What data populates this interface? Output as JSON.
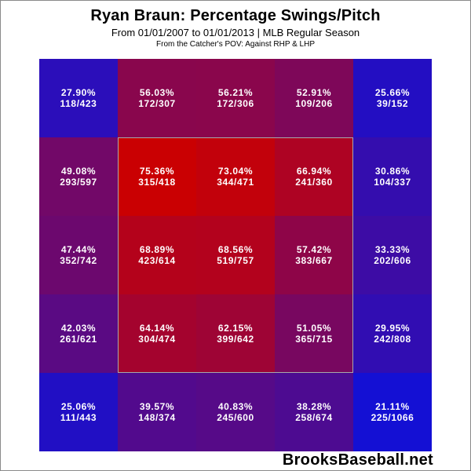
{
  "title": "Ryan Braun: Percentage Swings/Pitch",
  "subtitle": "From 01/01/2007 to 01/01/2013 | MLB Regular Season",
  "perspective": "From the Catcher's POV:   Against RHP & LHP",
  "brand": "BrooksBaseball.net",
  "colors": {
    "low": "#1010d8",
    "high": "#cc0000",
    "zone_border": "#a8a8a8"
  },
  "chart_data": {
    "type": "heatmap",
    "rows": 5,
    "cols": 5,
    "strike_zone": {
      "rows": [
        1,
        3
      ],
      "cols": [
        1,
        3
      ]
    },
    "cells": [
      [
        {
          "pct": "27.90%",
          "frac": "118/423",
          "value": 27.9
        },
        {
          "pct": "56.03%",
          "frac": "172/307",
          "value": 56.03
        },
        {
          "pct": "56.21%",
          "frac": "172/306",
          "value": 56.21
        },
        {
          "pct": "52.91%",
          "frac": "109/206",
          "value": 52.91
        },
        {
          "pct": "25.66%",
          "frac": "39/152",
          "value": 25.66
        }
      ],
      [
        {
          "pct": "49.08%",
          "frac": "293/597",
          "value": 49.08
        },
        {
          "pct": "75.36%",
          "frac": "315/418",
          "value": 75.36
        },
        {
          "pct": "73.04%",
          "frac": "344/471",
          "value": 73.04
        },
        {
          "pct": "66.94%",
          "frac": "241/360",
          "value": 66.94
        },
        {
          "pct": "30.86%",
          "frac": "104/337",
          "value": 30.86
        }
      ],
      [
        {
          "pct": "47.44%",
          "frac": "352/742",
          "value": 47.44
        },
        {
          "pct": "68.89%",
          "frac": "423/614",
          "value": 68.89
        },
        {
          "pct": "68.56%",
          "frac": "519/757",
          "value": 68.56
        },
        {
          "pct": "57.42%",
          "frac": "383/667",
          "value": 57.42
        },
        {
          "pct": "33.33%",
          "frac": "202/606",
          "value": 33.33
        }
      ],
      [
        {
          "pct": "42.03%",
          "frac": "261/621",
          "value": 42.03
        },
        {
          "pct": "64.14%",
          "frac": "304/474",
          "value": 64.14
        },
        {
          "pct": "62.15%",
          "frac": "399/642",
          "value": 62.15
        },
        {
          "pct": "51.05%",
          "frac": "365/715",
          "value": 51.05
        },
        {
          "pct": "29.95%",
          "frac": "242/808",
          "value": 29.95
        }
      ],
      [
        {
          "pct": "25.06%",
          "frac": "111/443",
          "value": 25.06
        },
        {
          "pct": "39.57%",
          "frac": "148/374",
          "value": 39.57
        },
        {
          "pct": "40.83%",
          "frac": "245/600",
          "value": 40.83
        },
        {
          "pct": "38.28%",
          "frac": "258/674",
          "value": 38.28
        },
        {
          "pct": "21.11%",
          "frac": "225/1066",
          "value": 21.11
        }
      ]
    ]
  }
}
